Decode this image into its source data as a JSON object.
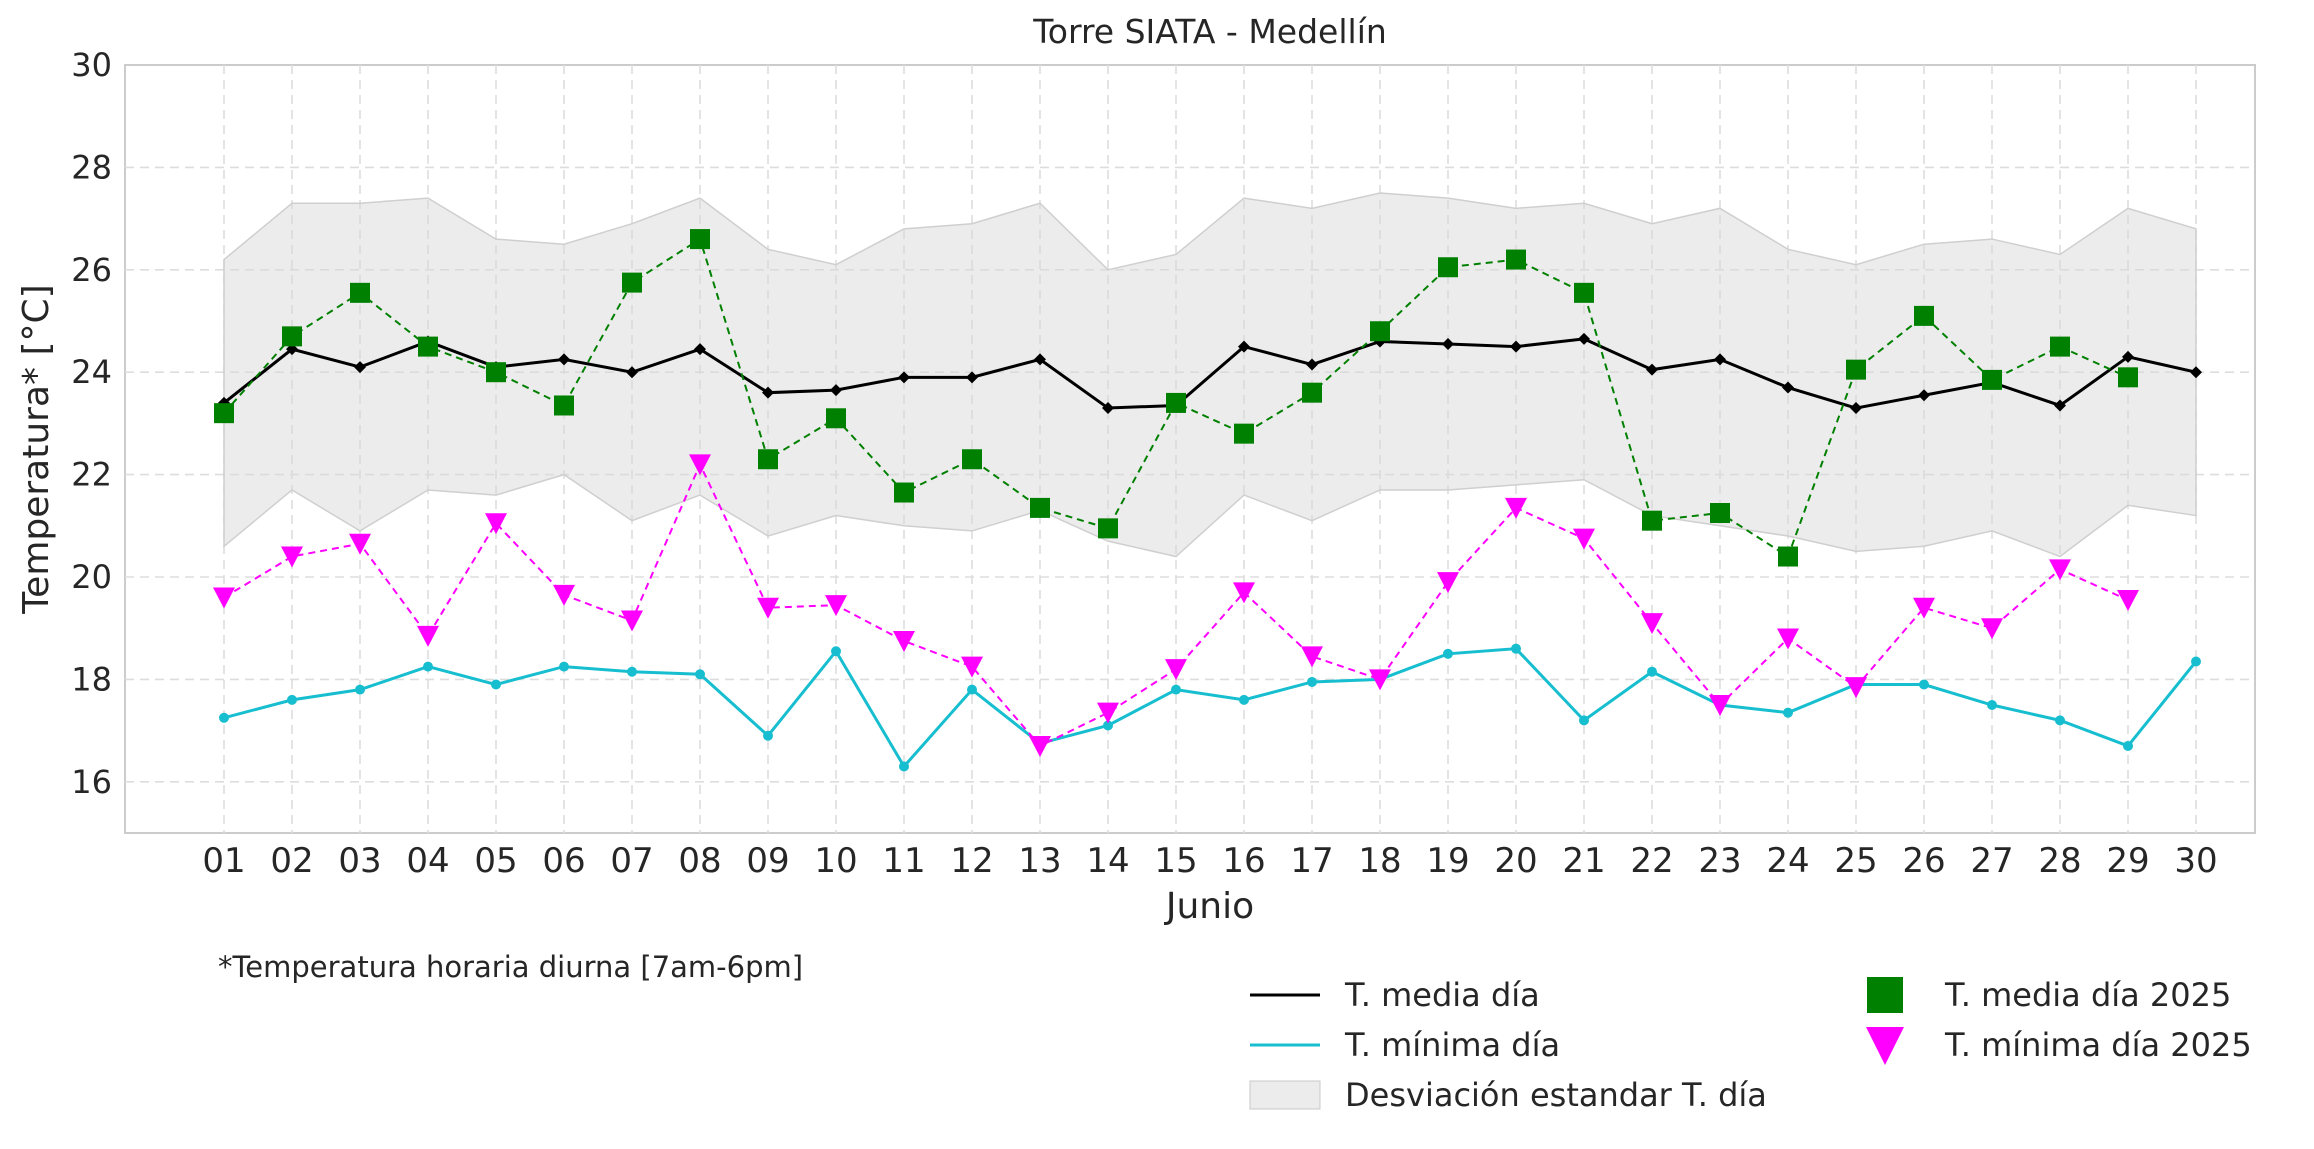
{
  "chart_data": {
    "type": "line",
    "title": "Torre SIATA - Medellín",
    "xlabel": "Junio",
    "ylabel": "Temperatura* [°C]",
    "footnote": "*Temperatura horaria diurna [7am-6pm]",
    "categories": [
      "01",
      "02",
      "03",
      "04",
      "05",
      "06",
      "07",
      "08",
      "09",
      "10",
      "11",
      "12",
      "13",
      "14",
      "15",
      "16",
      "17",
      "18",
      "19",
      "20",
      "21",
      "22",
      "23",
      "24",
      "25",
      "26",
      "27",
      "28",
      "29",
      "30"
    ],
    "ylim": [
      15,
      30
    ],
    "yticks": [
      16,
      18,
      20,
      22,
      24,
      26,
      28,
      30
    ],
    "grid": true,
    "legend_position": "bottom-right",
    "std_band": {
      "name": "Desviación estandar T. día",
      "color": "#d9d9d9",
      "upper": [
        26.2,
        27.3,
        27.3,
        27.4,
        26.6,
        26.5,
        26.9,
        27.4,
        26.4,
        26.1,
        26.8,
        26.9,
        27.3,
        26.0,
        26.3,
        27.4,
        27.2,
        27.5,
        27.4,
        27.2,
        27.3,
        26.9,
        27.2,
        26.4,
        26.1,
        26.5,
        26.6,
        26.3,
        27.2,
        26.8
      ],
      "lower": [
        20.6,
        21.7,
        20.9,
        21.7,
        21.6,
        22.0,
        21.1,
        21.6,
        20.8,
        21.2,
        21.0,
        20.9,
        21.3,
        20.7,
        20.4,
        21.6,
        21.1,
        21.7,
        21.7,
        21.8,
        21.9,
        21.2,
        21.0,
        20.8,
        20.5,
        20.6,
        20.9,
        20.4,
        21.4,
        21.2
      ]
    },
    "series": [
      {
        "name": "T. media día",
        "color": "#000000",
        "style": "solid",
        "marker": "diamond",
        "values": [
          23.4,
          24.45,
          24.1,
          24.6,
          24.1,
          24.25,
          24.0,
          24.45,
          23.6,
          23.65,
          23.9,
          23.9,
          24.25,
          23.3,
          23.35,
          24.5,
          24.15,
          24.6,
          24.55,
          24.5,
          24.65,
          24.05,
          24.25,
          23.7,
          23.3,
          23.55,
          23.8,
          23.35,
          24.3,
          24.0
        ]
      },
      {
        "name": "T. mínima día",
        "color": "#17becf",
        "style": "solid",
        "marker": "circle",
        "values": [
          17.25,
          17.6,
          17.8,
          18.25,
          17.9,
          18.25,
          18.15,
          18.1,
          16.9,
          18.55,
          16.3,
          17.8,
          16.75,
          17.1,
          17.8,
          17.6,
          17.95,
          18.0,
          18.5,
          18.6,
          17.2,
          18.15,
          17.5,
          17.35,
          17.9,
          17.9,
          17.5,
          17.2,
          16.7,
          18.35
        ]
      },
      {
        "name": "T. media día 2025",
        "color": "#008000",
        "style": "dashed",
        "marker": "square",
        "values": [
          23.2,
          24.7,
          25.55,
          24.5,
          24.0,
          23.35,
          25.75,
          26.6,
          22.3,
          23.1,
          21.65,
          22.3,
          21.35,
          20.95,
          23.4,
          22.8,
          23.6,
          24.8,
          26.05,
          26.2,
          25.55,
          21.1,
          21.25,
          20.4,
          24.05,
          25.1,
          23.85,
          24.5,
          23.9,
          null
        ]
      },
      {
        "name": "T. mínima día 2025",
        "color": "#ff00ff",
        "style": "dashed",
        "marker": "triangle-down",
        "values": [
          19.6,
          20.4,
          20.65,
          18.85,
          21.05,
          19.65,
          19.15,
          22.2,
          19.4,
          19.45,
          18.75,
          18.25,
          16.7,
          17.35,
          18.2,
          19.7,
          18.45,
          18.0,
          19.9,
          21.35,
          20.75,
          19.1,
          17.5,
          18.8,
          17.85,
          19.4,
          19.0,
          20.15,
          19.55,
          null
        ]
      }
    ]
  }
}
